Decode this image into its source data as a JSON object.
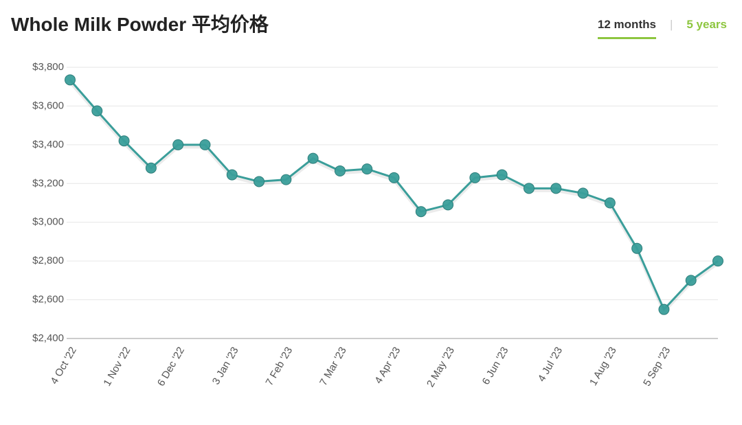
{
  "title": "Whole Milk Powder 平均价格",
  "tabs": [
    "12 months",
    "|",
    "5 years"
  ],
  "chart_data": {
    "type": "line",
    "categories": [
      "4 Oct '22",
      null,
      "1 Nov '22",
      null,
      "6 Dec '22",
      null,
      "3 Jan '23",
      null,
      "7 Feb '23",
      null,
      "7 Mar '23",
      null,
      "4 Apr '23",
      null,
      "2 May '23",
      null,
      "6 Jun '23",
      null,
      "4 Jul '23",
      null,
      "1 Aug '23",
      null,
      "5 Sep '23",
      null,
      null
    ],
    "series": [
      {
        "name": "Whole Milk Powder",
        "color": "#3a9e9a",
        "values": [
          3735,
          3575,
          3420,
          3280,
          3400,
          3400,
          3245,
          3210,
          3220,
          3330,
          3265,
          3275,
          3230,
          3055,
          3090,
          3230,
          3245,
          3175,
          3175,
          3150,
          3100,
          2865,
          2550,
          2700,
          2800
        ]
      }
    ],
    "ylim": [
      2400,
      3800
    ],
    "yticks": [
      {
        "value": 2400,
        "label": "$2,400"
      },
      {
        "value": 2600,
        "label": "$2,600"
      },
      {
        "value": 2800,
        "label": "$2,800"
      },
      {
        "value": 3000,
        "label": "$3,000"
      },
      {
        "value": 3200,
        "label": "$3,200"
      },
      {
        "value": 3400,
        "label": "$3,400"
      },
      {
        "value": 3600,
        "label": "$3,600"
      },
      {
        "value": 3800,
        "label": "$3,800"
      }
    ],
    "grid": true
  }
}
